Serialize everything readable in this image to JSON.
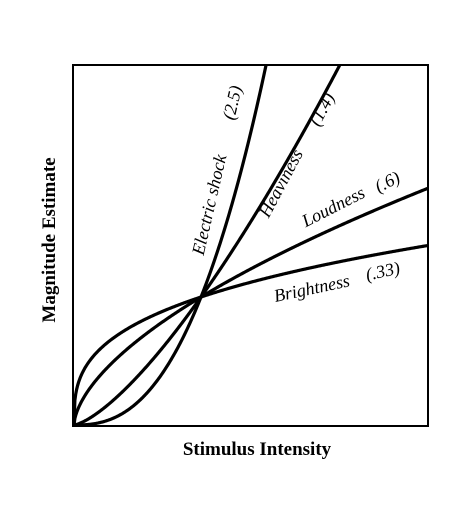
{
  "chart_data": {
    "type": "line",
    "title": "",
    "xlabel": "Stimulus Intensity",
    "ylabel": "Magnitude Estimate",
    "grid": false,
    "legend": "none",
    "series": [
      {
        "name": "Electric shock",
        "exponent_label": "(2.5)",
        "exponent": 2.5
      },
      {
        "name": "Heaviness",
        "exponent_label": "(1.4)",
        "exponent": 1.4
      },
      {
        "name": "Loudness",
        "exponent_label": "(.6)",
        "exponent": 0.6
      },
      {
        "name": "Brightness",
        "exponent_label": "(.33)",
        "exponent": 0.33
      }
    ]
  }
}
